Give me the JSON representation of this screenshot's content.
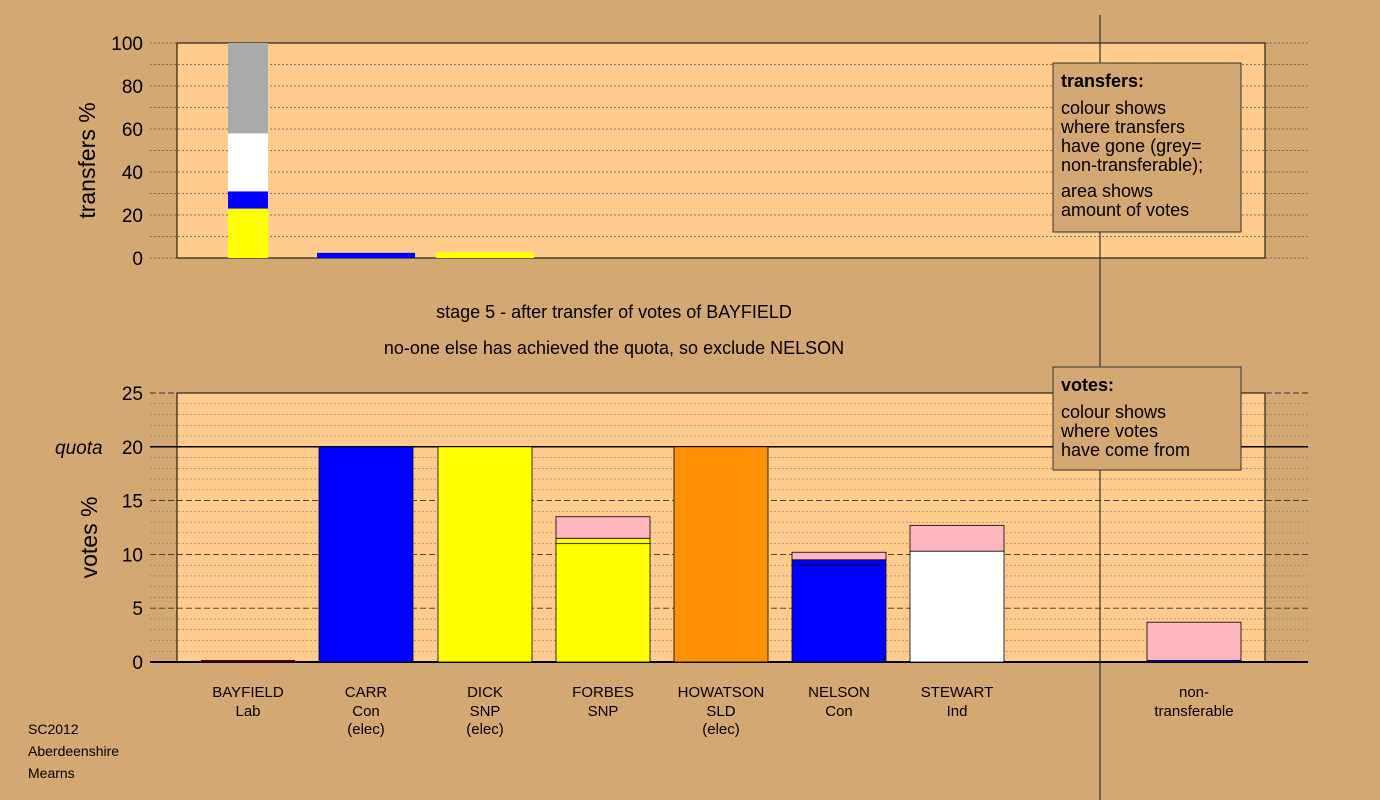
{
  "chart_data": [
    {
      "type": "bar",
      "ylabel": "transfers %",
      "ylim": [
        0,
        100
      ],
      "yticks": [
        0,
        20,
        40,
        60,
        80,
        100
      ],
      "description": {
        "title": "transfers:",
        "lines": [
          "colour shows",
          "where transfers",
          "have gone (grey=",
          "non-transferable);"
        ],
        "lines2": [
          "area shows",
          "amount of votes"
        ]
      },
      "stacked": true,
      "bars": [
        {
          "category": "BAYFIELD",
          "width_scale": 1.0,
          "segments": [
            {
              "color": "#ffff00",
              "value": 23
            },
            {
              "color": "#0000ff",
              "value": 8
            },
            {
              "color": "#ffffff",
              "value": 27
            },
            {
              "color": "#aaaaaa",
              "value": 42
            }
          ]
        },
        {
          "category": "CARR",
          "width_scale": 2.4,
          "segments": [
            {
              "color": "#0000ff",
              "value": 2.4
            }
          ]
        },
        {
          "category": "DICK",
          "width_scale": 2.4,
          "segments": [
            {
              "color": "#ffff00",
              "value": 2.8
            }
          ]
        }
      ]
    },
    {
      "type": "bar",
      "ylabel": "votes %",
      "ylim": [
        0,
        25
      ],
      "yticks": [
        0,
        5,
        10,
        15,
        20,
        25
      ],
      "quota": {
        "value": 20,
        "label": "quota"
      },
      "description": {
        "title": "votes:",
        "lines": [
          "colour shows",
          "where votes",
          "have come from"
        ]
      },
      "stacked": true,
      "categories": [
        {
          "name": "BAYFIELD",
          "party": "Lab",
          "status": ""
        },
        {
          "name": "CARR",
          "party": "Con",
          "status": "(elec)"
        },
        {
          "name": "DICK",
          "party": "SNP",
          "status": "(elec)"
        },
        {
          "name": "FORBES",
          "party": "SNP",
          "status": ""
        },
        {
          "name": "HOWATSON",
          "party": "SLD",
          "status": "(elec)"
        },
        {
          "name": "NELSON",
          "party": "Con",
          "status": ""
        },
        {
          "name": "STEWART",
          "party": "Ind",
          "status": ""
        },
        {
          "name": "non-",
          "party": "transferable",
          "status": ""
        }
      ],
      "bars": [
        {
          "category": "BAYFIELD",
          "segments": [
            {
              "color": "#ff0000",
              "value": 0
            }
          ]
        },
        {
          "category": "CARR",
          "segments": [
            {
              "color": "#0000ff",
              "value": 20
            }
          ]
        },
        {
          "category": "DICK",
          "segments": [
            {
              "color": "#ffff00",
              "value": 20
            }
          ]
        },
        {
          "category": "FORBES",
          "segments": [
            {
              "color": "#ffff00",
              "value": 11.0
            },
            {
              "color": "#ffff00",
              "value": 0.5
            },
            {
              "color": "#ffb6c1",
              "value": 2.0
            }
          ]
        },
        {
          "category": "HOWATSON",
          "segments": [
            {
              "color": "#ff9108",
              "value": 20
            }
          ]
        },
        {
          "category": "NELSON",
          "segments": [
            {
              "color": "#0000ff",
              "value": 9.0
            },
            {
              "color": "#0000ff",
              "value": 0.5
            },
            {
              "color": "#ffb6c1",
              "value": 0.7
            }
          ]
        },
        {
          "category": "STEWART",
          "segments": [
            {
              "color": "#ffffff",
              "value": 10.3
            },
            {
              "color": "#ffb6c1",
              "value": 2.4
            }
          ]
        },
        {
          "category": "non-transferable",
          "segments": [
            {
              "color": "#0000ff",
              "value": 0.15
            },
            {
              "color": "#ffb6c1",
              "value": 3.55
            }
          ]
        }
      ]
    }
  ],
  "stage_text": "stage 5 - after transfer of votes of BAYFIELD",
  "action_text": "no-one else has achieved the quota, so exclude NELSON",
  "corner": {
    "election": "SC2012",
    "council": "Aberdeenshire",
    "ward": "Mearns"
  },
  "colors": {
    "background": "#d4a873",
    "plot_area": "#ffcc8e",
    "legend_box": "#d4a873"
  }
}
